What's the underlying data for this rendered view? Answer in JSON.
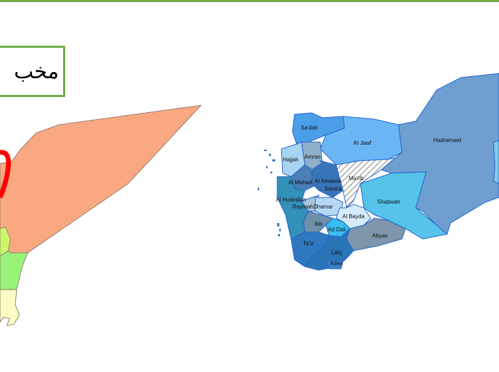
{
  "slide": {
    "title_text": "مخب",
    "accent_color": "#70ad47"
  },
  "left_map": {
    "colors": {
      "main": "#f9a882",
      "marker": "#ff0000",
      "region_a": "#ccf56a",
      "region_b": "#99f27a",
      "region_c": "#fdfbc4"
    }
  },
  "right_map": {
    "governorates": {
      "sadah": "Sa'dah",
      "al_jawf": "Al Jawf",
      "hadramawt": "Hadramawt",
      "hajjah": "Hajjah",
      "amran": "Amran",
      "marib": "Ma'rib",
      "al_mahwit": "Al Mahwit",
      "al_amanah": "Al Amanah",
      "sanaa": "Sana'a",
      "al_hodeidah": "Al Hodeidah",
      "raymah": "Raymah",
      "dhamar": "Dhamar",
      "al_bayda": "Al Bayda",
      "shabwah": "Shabwah",
      "ibb": "Ibb",
      "ad_dali": "Ad Dali",
      "abyan": "Abyan",
      "taiz": "Ta'iz",
      "lahj": "Lahj",
      "aden": "Aden"
    }
  }
}
